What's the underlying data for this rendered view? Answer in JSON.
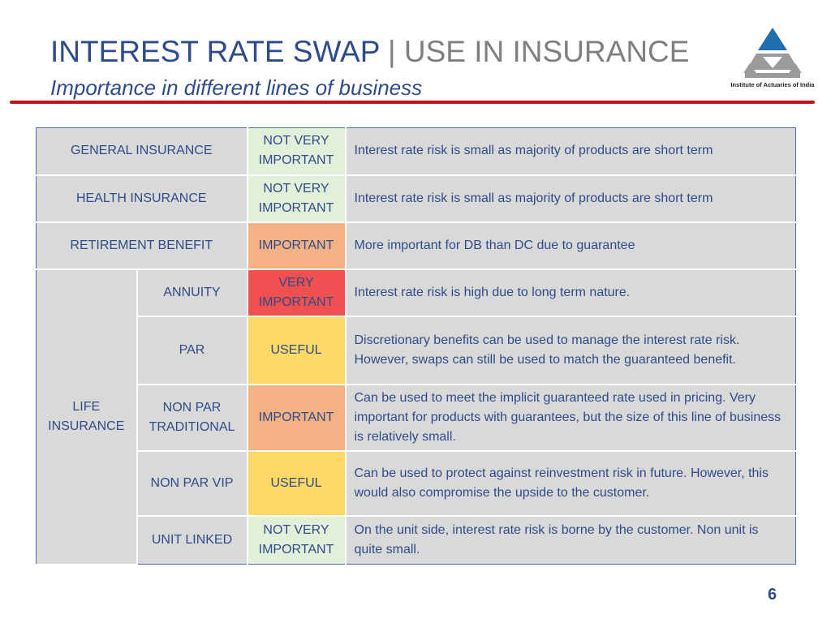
{
  "header": {
    "title_main": "INTEREST RATE SWAP",
    "title_sep": "|",
    "title_sub": "USE IN INSURANCE",
    "subtitle": "Importance in different lines of business"
  },
  "logo": {
    "text": "Institute of Actuaries of India",
    "colors": {
      "triangle": "#1e6eb0",
      "emblem": "#9a9a9a"
    }
  },
  "table": {
    "rows": {
      "general": {
        "business": "GENERAL INSURANCE",
        "importance": "NOT VERY IMPORTANT",
        "comment": "Interest rate risk is small as majority of products are short term"
      },
      "health": {
        "business": "HEALTH INSURANCE",
        "importance": "NOT VERY IMPORTANT",
        "comment": "Interest rate risk is small as majority of products are short term"
      },
      "retirement": {
        "business": "RETIREMENT BENEFIT",
        "importance": "IMPORTANT",
        "comment": "More important for DB than DC due to guarantee"
      },
      "life_label": "LIFE INSURANCE",
      "annuity": {
        "product": "ANNUITY",
        "importance": "VERY IMPORTANT",
        "comment": "Interest rate risk is high due to long term nature."
      },
      "par": {
        "product": "PAR",
        "importance": "USEFUL",
        "comment": "Discretionary benefits can be used to manage the interest rate risk. However, swaps can still be used to match the guaranteed benefit."
      },
      "non_par_trad": {
        "product": "NON PAR TRADITIONAL",
        "importance": "IMPORTANT",
        "comment": "Can be used to meet the implicit guaranteed rate used in pricing. Very important for products with guarantees, but the size of this line of business is relatively small."
      },
      "non_par_vip": {
        "product": "NON PAR VIP",
        "importance": "USEFUL",
        "comment": "Can be used to protect against reinvestment risk in future. However, this would also compromise the upside to the customer."
      },
      "unit_linked": {
        "product": "UNIT LINKED",
        "importance": "NOT VERY IMPORTANT",
        "comment": "On the unit side, interest rate risk is borne by the customer. Non unit is quite small."
      }
    },
    "level_colors": {
      "not_very_important": "#e2efd9",
      "important": "#f4b183",
      "very_important": "#f05050",
      "useful": "#ffd966",
      "neutral": "#d9d9d9"
    }
  },
  "footer": {
    "page_number": "6"
  }
}
